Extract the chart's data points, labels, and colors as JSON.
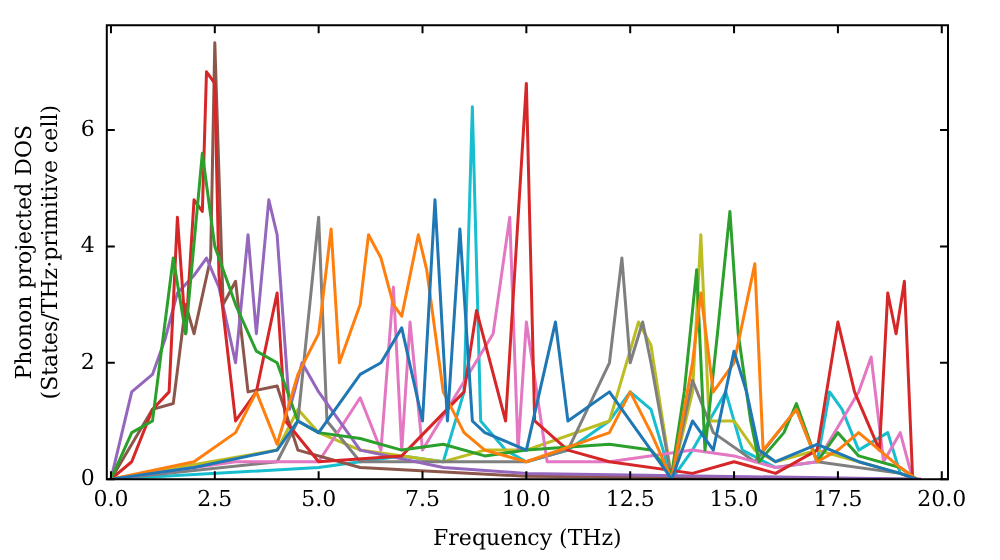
{
  "chart_data": {
    "type": "line",
    "xlabel": "Frequency (THz)",
    "ylabel": "Phonon projected DOS\n(States/THz·primitive cell)",
    "xlim": [
      -0.1,
      20.15
    ],
    "ylim": [
      0,
      7.8
    ],
    "xticks": [
      {
        "value": 0,
        "label": "0.0"
      },
      {
        "value": 2.5,
        "label": "2.5"
      },
      {
        "value": 5,
        "label": "5.0"
      },
      {
        "value": 7.5,
        "label": "7.5"
      },
      {
        "value": 10,
        "label": "10.0"
      },
      {
        "value": 12.5,
        "label": "12.5"
      },
      {
        "value": 15,
        "label": "15.0"
      },
      {
        "value": 17.5,
        "label": "17.5"
      },
      {
        "value": 20,
        "label": "20.0"
      }
    ],
    "yticks": [
      0,
      2,
      4,
      6
    ],
    "grid": false,
    "legend": false,
    "marker": "none",
    "line_style": "solid",
    "tick_labels": "xy",
    "series": [
      {
        "color": "#1f77b4",
        "x": [
          0,
          2,
          4,
          4.5,
          5,
          6,
          6.5,
          7,
          7.5,
          7.8,
          8.1,
          8.4,
          8.7,
          9,
          10,
          10.7,
          11,
          12,
          13,
          13.5,
          14,
          14.5,
          15,
          15.3,
          15.6,
          16,
          17,
          18,
          19,
          19.4
        ],
        "values": [
          0,
          0.2,
          0.5,
          1.0,
          0.8,
          1.8,
          2.0,
          2.6,
          1.0,
          4.8,
          1.0,
          4.3,
          1.0,
          0.8,
          0.5,
          2.7,
          1.0,
          1.5,
          0.5,
          0,
          1.0,
          0.5,
          2.2,
          1.5,
          0.5,
          0.3,
          0.6,
          0.3,
          0.1,
          0
        ]
      },
      {
        "color": "#ff7f0e",
        "x": [
          0,
          2,
          3,
          3.5,
          4,
          4.5,
          5,
          5.3,
          5.5,
          6,
          6.2,
          6.5,
          6.8,
          7,
          7.4,
          7.6,
          8,
          8.5,
          9,
          10,
          12,
          12.5,
          13,
          13.5,
          14,
          14.2,
          14.5,
          15,
          15.5,
          15.7,
          16.5,
          17,
          17.5,
          18,
          19,
          19.4
        ],
        "values": [
          0,
          0.3,
          0.8,
          1.5,
          0.6,
          1.8,
          2.5,
          4.3,
          2.0,
          3.0,
          4.2,
          3.8,
          3.0,
          2.8,
          4.2,
          3.6,
          1.5,
          0.8,
          0.5,
          0.3,
          0.8,
          1.5,
          0.8,
          0,
          2.0,
          3.2,
          1.5,
          2.0,
          3.7,
          0.5,
          1.2,
          0.3,
          0.5,
          0.8,
          0.2,
          0
        ]
      },
      {
        "color": "#2ca02c",
        "x": [
          0,
          0.5,
          1,
          1.5,
          1.8,
          2.2,
          2.5,
          3,
          3.5,
          4,
          4.5,
          5,
          6,
          7,
          8,
          9,
          10,
          12,
          13,
          13.5,
          13.8,
          14.1,
          14.3,
          14.6,
          14.9,
          15.1,
          15.4,
          15.6,
          16.2,
          16.5,
          17,
          17.5,
          18,
          19,
          19.4
        ],
        "values": [
          0,
          0.8,
          1.0,
          3.8,
          2.5,
          5.6,
          4.0,
          3.0,
          2.2,
          2.0,
          1.0,
          0.8,
          0.7,
          0.5,
          0.6,
          0.4,
          0.5,
          0.6,
          0.5,
          0.1,
          1.5,
          3.6,
          0.5,
          2.5,
          4.6,
          2.5,
          1.0,
          0.3,
          0.8,
          1.3,
          0.3,
          0.8,
          0.4,
          0.2,
          0
        ]
      },
      {
        "color": "#d62728",
        "x": [
          0,
          0.5,
          1,
          1.4,
          1.6,
          1.8,
          2,
          2.2,
          2.3,
          2.5,
          2.6,
          3,
          3.5,
          4,
          4.2,
          5,
          7,
          8.5,
          8.8,
          9.5,
          10,
          10.2,
          11,
          12,
          14,
          15,
          16,
          17,
          17.5,
          17.9,
          18.5,
          18.7,
          18.9,
          19.1,
          19.3
        ],
        "values": [
          0,
          0.3,
          1.2,
          1.5,
          4.5,
          2.5,
          4.8,
          4.6,
          7.0,
          6.8,
          3.5,
          1.0,
          1.5,
          3.2,
          1.0,
          0.3,
          0.4,
          1.5,
          2.9,
          1.0,
          6.8,
          1.0,
          0.5,
          0.3,
          0.1,
          0.3,
          0.1,
          0.5,
          2.7,
          1.5,
          0.5,
          3.2,
          2.5,
          3.4,
          0
        ]
      },
      {
        "color": "#9467bd",
        "x": [
          0,
          0.5,
          1,
          1.3,
          1.6,
          2,
          2.3,
          2.6,
          3,
          3.3,
          3.5,
          3.8,
          4,
          4.3,
          4.6,
          5,
          6,
          8,
          10,
          19.5
        ],
        "values": [
          0,
          1.5,
          1.8,
          2.4,
          3.2,
          3.5,
          3.8,
          3.3,
          2.0,
          4.2,
          2.5,
          4.8,
          4.2,
          1.2,
          2.0,
          1.5,
          0.5,
          0.2,
          0.1,
          0
        ]
      },
      {
        "color": "#8c564b",
        "x": [
          0,
          1,
          1.5,
          1.8,
          2,
          2.4,
          2.5,
          2.7,
          3,
          3.3,
          4,
          4.5,
          6,
          10,
          19.5
        ],
        "values": [
          0,
          1.2,
          1.3,
          3.0,
          2.5,
          3.8,
          7.5,
          3.0,
          3.4,
          1.5,
          1.6,
          0.5,
          0.2,
          0.05,
          0
        ]
      },
      {
        "color": "#e377c2",
        "x": [
          0,
          3,
          5,
          6,
          6.5,
          6.8,
          7,
          7.2,
          7.5,
          9.2,
          9.6,
          9.8,
          10,
          10.5,
          12,
          14,
          15,
          16,
          17,
          18,
          18.3,
          18.6,
          19,
          19.3
        ],
        "values": [
          0,
          0.3,
          0.3,
          1.4,
          0.5,
          3.3,
          0.5,
          2.7,
          0.5,
          2.5,
          4.5,
          0.5,
          2.7,
          0.3,
          0.3,
          0.5,
          0.4,
          0.2,
          0.3,
          1.5,
          2.1,
          0.3,
          0.8,
          0
        ]
      },
      {
        "color": "#7f7f7f",
        "x": [
          0,
          4,
          4.5,
          5,
          5.2,
          6,
          8,
          10,
          11,
          12,
          12.3,
          12.5,
          12.8,
          13,
          13.5,
          14,
          14.5,
          15.5,
          16.5,
          17,
          19,
          19.4
        ],
        "values": [
          0,
          0.3,
          1.0,
          4.5,
          1.0,
          0.3,
          0.3,
          0.3,
          0.5,
          2.0,
          3.8,
          2.0,
          2.7,
          2.0,
          0,
          1.7,
          0.8,
          0.3,
          1.2,
          0.3,
          0.1,
          0
        ]
      },
      {
        "color": "#bcbd22",
        "x": [
          0,
          4,
          4.5,
          5,
          6,
          8,
          9,
          10,
          12,
          12.7,
          13,
          13.5,
          14,
          14.2,
          14.4,
          15,
          15.5,
          16,
          17,
          18,
          19,
          19.4
        ],
        "values": [
          0,
          0.5,
          1.2,
          0.8,
          0.5,
          0.3,
          0.5,
          0.5,
          1.0,
          2.7,
          2.3,
          0,
          1.5,
          4.2,
          1.0,
          1.0,
          0.5,
          0.3,
          0.5,
          0.3,
          0.1,
          0
        ]
      },
      {
        "color": "#17becf",
        "x": [
          0,
          5,
          7,
          8,
          8.5,
          8.7,
          8.9,
          9.5,
          10,
          11,
          12,
          12.5,
          13,
          13.5,
          14,
          14.8,
          15.2,
          16,
          17,
          17.3,
          17.6,
          18,
          18.7,
          19,
          19.4
        ],
        "values": [
          0,
          0.2,
          0.4,
          0.3,
          1.5,
          6.4,
          1.0,
          0.5,
          0.3,
          0.5,
          1.0,
          1.5,
          1.2,
          0,
          0.5,
          1.5,
          0.5,
          0.2,
          0.3,
          1.5,
          1.2,
          0.5,
          0.8,
          0.1,
          0
        ]
      }
    ]
  }
}
